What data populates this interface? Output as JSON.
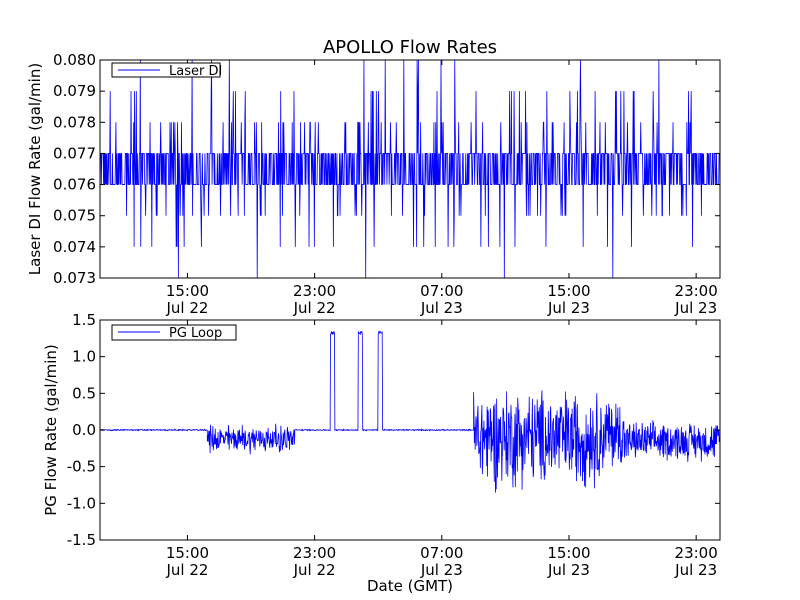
{
  "chart_data": [
    {
      "type": "line",
      "title": "APOLLO Flow Rates",
      "xlabel": "",
      "ylabel": "Laser DI Flow Rate (gal/min)",
      "ylim": [
        0.073,
        0.08
      ],
      "yticks": [
        "0.073",
        "0.074",
        "0.075",
        "0.076",
        "0.077",
        "0.078",
        "0.079",
        "0.080"
      ],
      "xlim": [
        "Jul 22 09:30",
        "Jul 24 00:30"
      ],
      "xticks": [
        {
          "time": "15:00",
          "date": "Jul 22"
        },
        {
          "time": "23:00",
          "date": "Jul 22"
        },
        {
          "time": "07:00",
          "date": "Jul 23"
        },
        {
          "time": "15:00",
          "date": "Jul 23"
        },
        {
          "time": "23:00",
          "date": "Jul 23"
        }
      ],
      "legend": {
        "placement": "top-left",
        "entries": [
          "Laser DI"
        ]
      },
      "grid": false,
      "color": "#0000ff",
      "series": [
        {
          "name": "Laser DI",
          "baseline_band": [
            0.076,
            0.077
          ],
          "x": [
            "Jul 22 09:30",
            "Jul 22 11:00",
            "Jul 22 13:00",
            "Jul 22 15:00",
            "Jul 22 17:00",
            "Jul 22 19:00",
            "Jul 22 21:00",
            "Jul 22 23:00",
            "Jul 23 01:00",
            "Jul 23 03:00",
            "Jul 23 05:00",
            "Jul 23 07:00",
            "Jul 23 09:00",
            "Jul 23 11:00",
            "Jul 23 13:00",
            "Jul 23 15:00",
            "Jul 23 17:00",
            "Jul 23 19:00",
            "Jul 23 21:00",
            "Jul 23 23:00",
            "Jul 24 00:30"
          ],
          "values": [
            0.0765,
            0.0765,
            0.0765,
            0.0765,
            0.0765,
            0.0765,
            0.0765,
            0.0765,
            0.0765,
            0.0765,
            0.0765,
            0.0765,
            0.0765,
            0.0765,
            0.0765,
            0.0765,
            0.0765,
            0.0765,
            0.0765,
            0.0765,
            0.0765
          ],
          "spike_range": [
            0.073,
            0.08
          ]
        }
      ]
    },
    {
      "type": "line",
      "title": "",
      "xlabel": "Date (GMT)",
      "ylabel": "PG Flow Rate (gal/min)",
      "ylim": [
        -1.5,
        1.5
      ],
      "yticks": [
        "-1.5",
        "-1.0",
        "-0.5",
        "0.0",
        "0.5",
        "1.0",
        "1.5"
      ],
      "xlim": [
        "Jul 22 09:30",
        "Jul 24 00:30"
      ],
      "xticks": [
        {
          "time": "15:00",
          "date": "Jul 22"
        },
        {
          "time": "23:00",
          "date": "Jul 22"
        },
        {
          "time": "07:00",
          "date": "Jul 23"
        },
        {
          "time": "15:00",
          "date": "Jul 23"
        },
        {
          "time": "23:00",
          "date": "Jul 23"
        }
      ],
      "legend": {
        "placement": "top-left",
        "entries": [
          "PG Loop"
        ]
      },
      "grid": false,
      "color": "#0000ff",
      "series": [
        {
          "name": "PG Loop",
          "segments": [
            {
              "start": "Jul 22 09:30",
              "end": "Jul 22 16:15",
              "center": 0.0,
              "amplitude": 0.01
            },
            {
              "start": "Jul 22 16:15",
              "end": "Jul 22 21:45",
              "center": -0.12,
              "amplitude": 0.22
            },
            {
              "start": "Jul 22 21:45",
              "end": "Jul 23 09:00",
              "center": 0.0,
              "amplitude": 0.01
            },
            {
              "start": "Jul 23 09:00",
              "end": "Jul 23 12:00",
              "center": -0.1,
              "amplitude": 0.8
            },
            {
              "start": "Jul 23 12:00",
              "end": "Jul 23 17:00",
              "center": -0.1,
              "amplitude": 0.75
            },
            {
              "start": "Jul 23 17:00",
              "end": "Jul 23 18:30",
              "center": -0.05,
              "amplitude": 0.6
            },
            {
              "start": "Jul 23 18:30",
              "end": "Jul 24 00:30",
              "center": -0.15,
              "amplitude": 0.3
            }
          ],
          "pulses": [
            {
              "start": "Jul 23 00:00",
              "end": "Jul 23 00:15",
              "peak": 1.35
            },
            {
              "start": "Jul 23 01:45",
              "end": "Jul 23 02:00",
              "peak": 1.35
            },
            {
              "start": "Jul 23 03:00",
              "end": "Jul 23 03:15",
              "peak": 1.35
            }
          ]
        }
      ]
    }
  ]
}
